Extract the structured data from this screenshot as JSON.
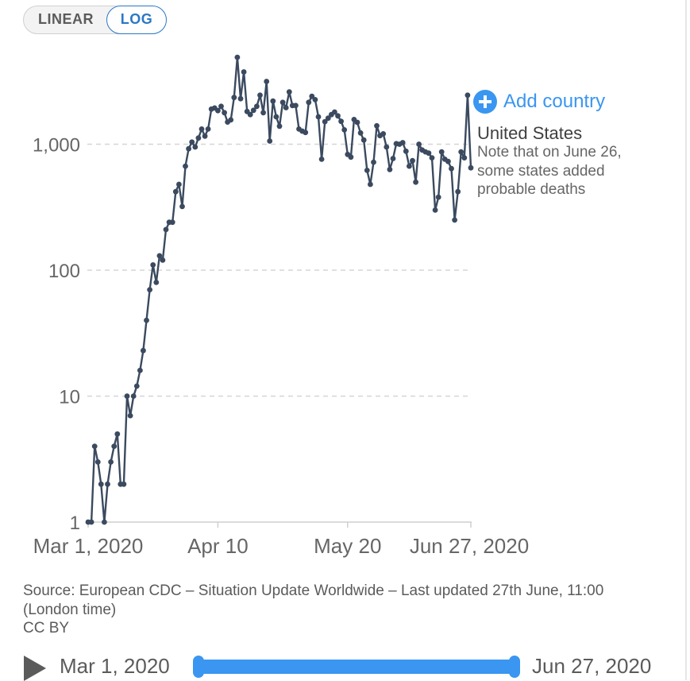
{
  "toggle": {
    "linear_label": "LINEAR",
    "log_label": "LOG",
    "active": "LOG"
  },
  "add_country": {
    "label": "Add country"
  },
  "series_label": "United States",
  "annotation": "Note that on June 26, some states added probable deaths",
  "source": {
    "text": "Source: European CDC – Situation Update Worldwide – Last updated 27th June, 11:00 (London time)",
    "license": "CC BY"
  },
  "timeline": {
    "start_label": "Mar 1, 2020",
    "end_label": "Jun 27, 2020"
  },
  "colors": {
    "series": "#3b4a5f",
    "accent": "#3a96f0",
    "grid": "#d6d6d6"
  },
  "chart_data": {
    "type": "line",
    "y_scale": "log",
    "ylim": [
      1,
      3000
    ],
    "grid": true,
    "y_ticks": [
      {
        "value": 1,
        "label": "1"
      },
      {
        "value": 10,
        "label": "10"
      },
      {
        "value": 100,
        "label": "100"
      },
      {
        "value": 1000,
        "label": "1,000"
      }
    ],
    "x_ticks": [
      {
        "day": 0,
        "label": "Mar 1, 2020"
      },
      {
        "day": 40,
        "label": "Apr 10"
      },
      {
        "day": 80,
        "label": "May 20"
      },
      {
        "day": 118,
        "label": "Jun 27, 2020"
      }
    ],
    "x_start": "2020-03-01",
    "x_end": "2020-06-27",
    "series": [
      {
        "name": "United States",
        "values": [
          1,
          1,
          4,
          3,
          2,
          1,
          2,
          3,
          4,
          5,
          2,
          2,
          10,
          7,
          10,
          12,
          16,
          23,
          40,
          70,
          110,
          80,
          130,
          120,
          210,
          240,
          240,
          420,
          480,
          320,
          670,
          920,
          1040,
          950,
          1120,
          1320,
          1160,
          1320,
          1900,
          1940,
          1850,
          2000,
          1780,
          1500,
          1560,
          2350,
          4900,
          2300,
          3750,
          1820,
          1720,
          1860,
          2000,
          2450,
          1780,
          3150,
          1060,
          2200,
          1650,
          1390,
          2150,
          1950,
          2600,
          2030,
          2030,
          1320,
          1270,
          1240,
          2150,
          2400,
          2260,
          1650,
          760,
          1510,
          1610,
          1720,
          1800,
          1680,
          1520,
          1300,
          830,
          790,
          1570,
          1490,
          1230,
          1080,
          620,
          480,
          720,
          1400,
          1170,
          1210,
          950,
          630,
          770,
          1010,
          1000,
          1030,
          880,
          670,
          740,
          500,
          1000,
          900,
          870,
          850,
          780,
          300,
          380,
          870,
          760,
          730,
          640,
          250,
          420,
          870,
          780,
          2450,
          650
        ]
      }
    ]
  }
}
